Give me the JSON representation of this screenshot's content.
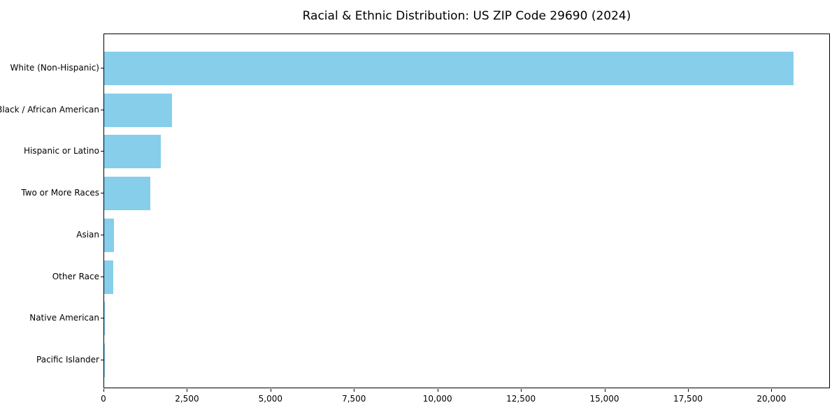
{
  "chart_data": {
    "type": "bar",
    "orientation": "horizontal",
    "title": "Racial & Ethnic Distribution: US ZIP Code 29690 (2024)",
    "categories": [
      "White (Non-Hispanic)",
      "Black / African American",
      "Hispanic or Latino",
      "Two or More Races",
      "Asian",
      "Other Race",
      "Native American",
      "Pacific Islander"
    ],
    "values": [
      20650,
      2030,
      1690,
      1380,
      285,
      280,
      25,
      5
    ],
    "xlabel": "",
    "ylabel": "",
    "xlim": [
      0,
      21750
    ],
    "xticks": [
      0,
      2500,
      5000,
      7500,
      10000,
      12500,
      15000,
      17500,
      20000
    ],
    "xtick_labels": [
      "0",
      "2,500",
      "5,000",
      "7,500",
      "10,000",
      "12,500",
      "15,000",
      "17,500",
      "20,000"
    ],
    "bar_color": "#87CEEB",
    "spine_color": "#000000",
    "grid": false,
    "legend_position": "none"
  }
}
